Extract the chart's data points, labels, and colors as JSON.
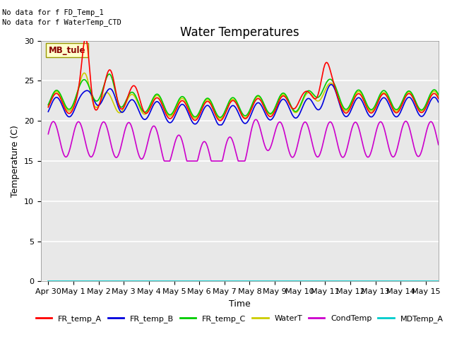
{
  "title": "Water Temperatures",
  "xlabel": "Time",
  "ylabel": "Temperature (C)",
  "ylim": [
    0,
    30
  ],
  "xlim": [
    -0.3,
    15.5
  ],
  "yticks": [
    0,
    5,
    10,
    15,
    20,
    25,
    30
  ],
  "xtick_labels": [
    "Apr 30",
    "May 1",
    "May 2",
    "May 3",
    "May 4",
    "May 5",
    "May 6",
    "May 7",
    "May 8",
    "May 9",
    "May 10",
    "May 11",
    "May 12",
    "May 13",
    "May 14",
    "May 15"
  ],
  "xtick_positions": [
    0,
    1,
    2,
    3,
    4,
    5,
    6,
    7,
    8,
    9,
    10,
    11,
    12,
    13,
    14,
    15
  ],
  "no_data_texts": [
    "No data for f FD_Temp_1",
    "No data for f WaterTemp_CTD"
  ],
  "station_label": "MB_tule",
  "legend_entries": [
    "FR_temp_A",
    "FR_temp_B",
    "FR_temp_C",
    "WaterT",
    "CondTemp",
    "MDTemp_A"
  ],
  "line_colors": [
    "#ff0000",
    "#0000dd",
    "#00cc00",
    "#cccc00",
    "#cc00cc",
    "#00cccc"
  ],
  "background_color": "#e8e8e8",
  "gridline_color": "#ffffff",
  "title_fontsize": 12,
  "axis_fontsize": 9,
  "tick_fontsize": 8,
  "legend_fontsize": 8
}
